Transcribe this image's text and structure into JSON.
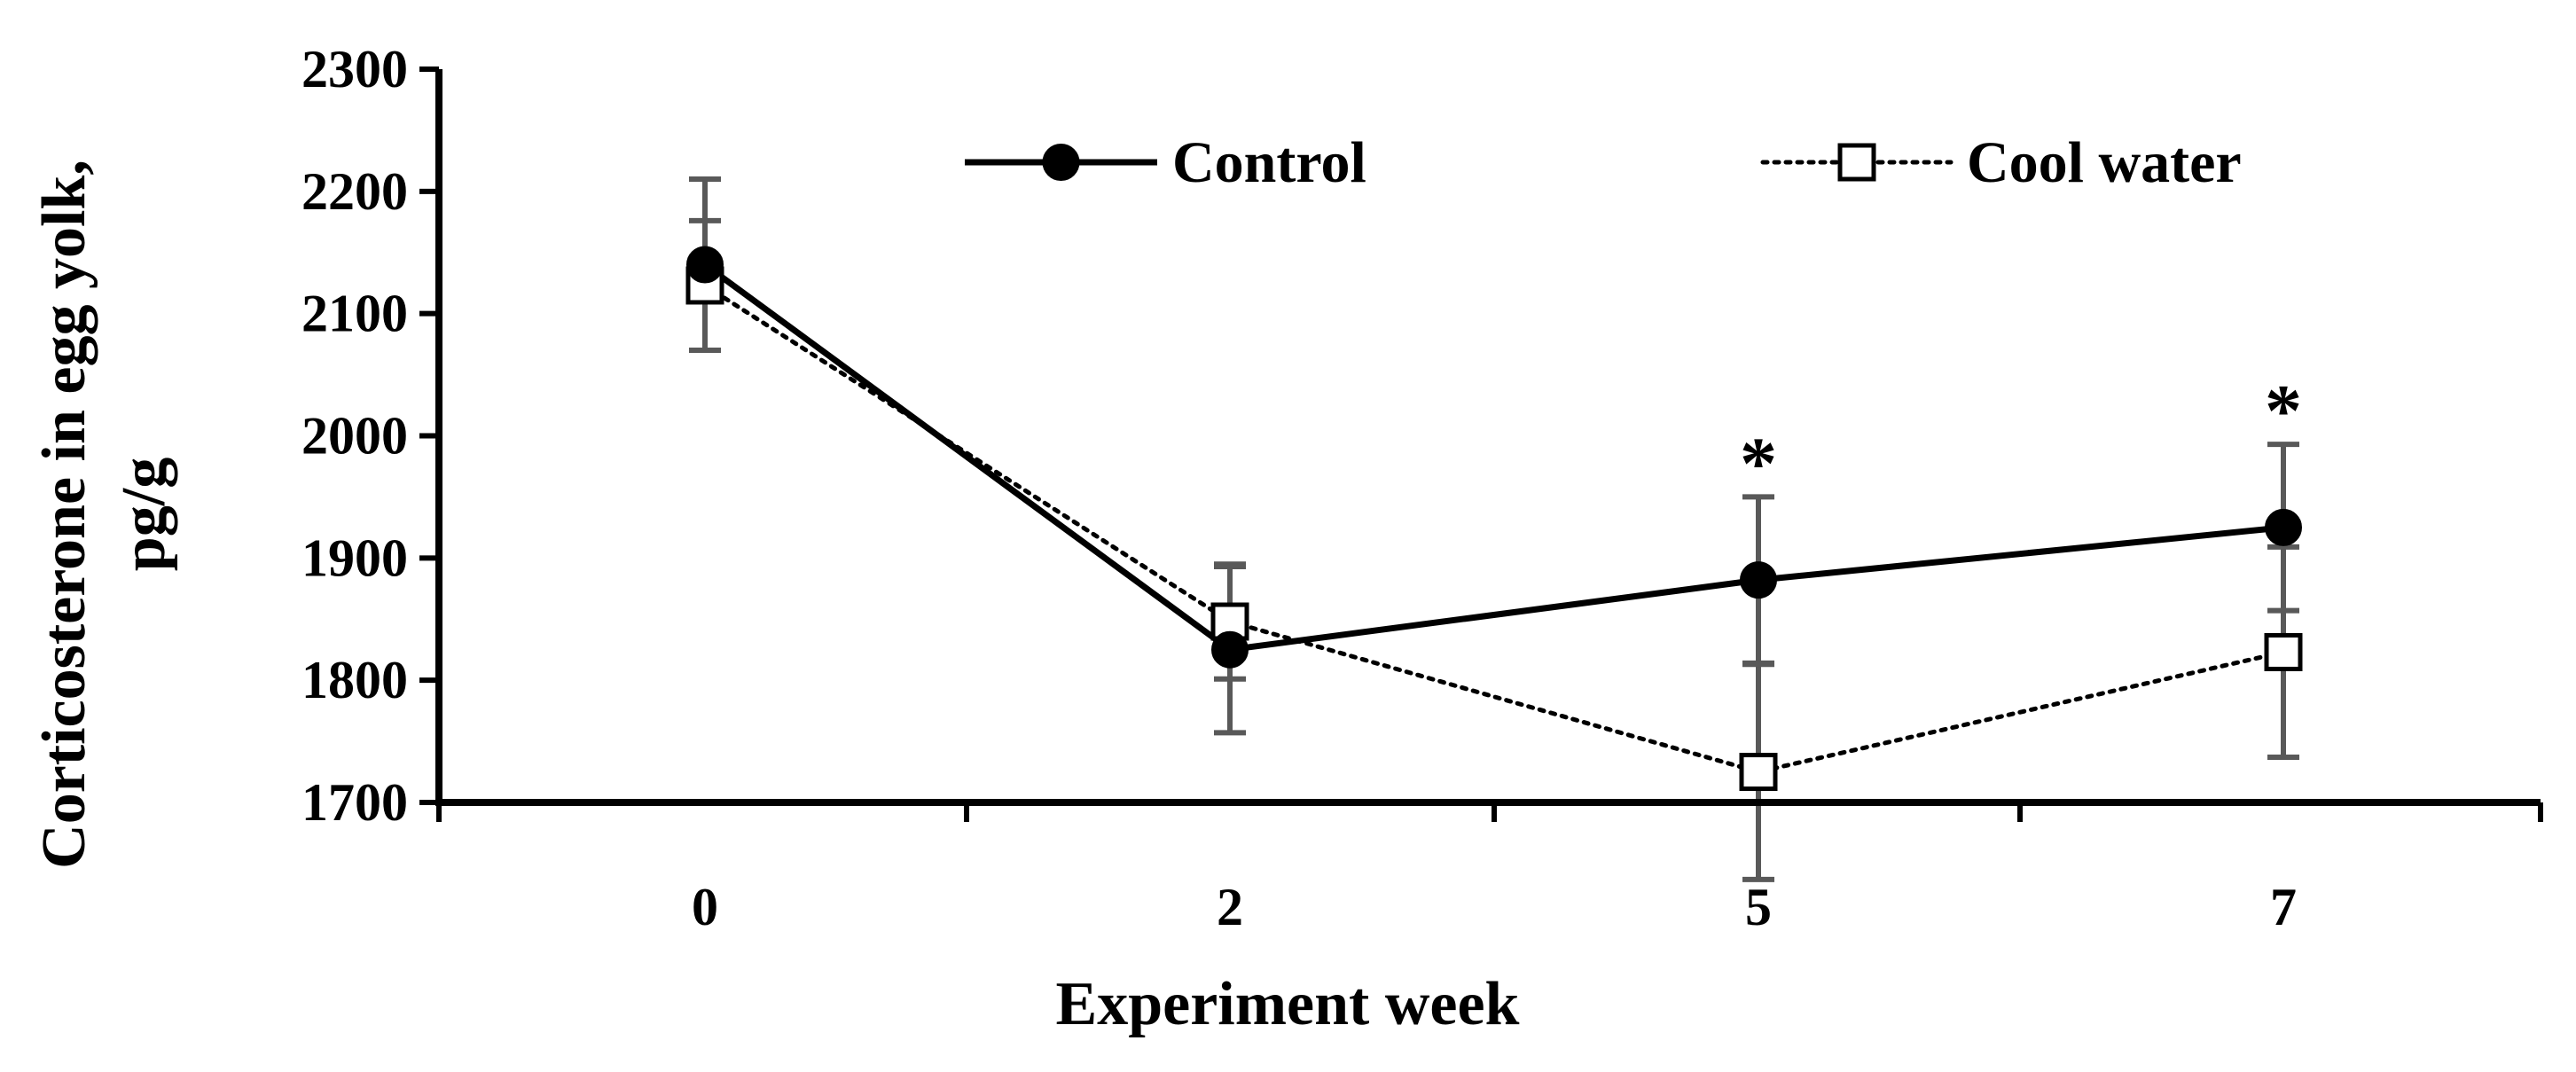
{
  "chart_data": {
    "type": "line",
    "title": "",
    "xlabel": "Experiment week",
    "ylabel_lines": [
      "Corticosterone in egg yolk,",
      "pg/g"
    ],
    "categories": [
      "0",
      "2",
      "5",
      "7"
    ],
    "ylim": [
      1700,
      2300
    ],
    "yticks": [
      1700,
      1800,
      1900,
      2000,
      2100,
      2200,
      2300
    ],
    "grid": false,
    "legend_position": "top",
    "series": [
      {
        "name": "Control",
        "line_style": "solid",
        "marker": "filled-circle",
        "color": "#000000",
        "values": [
          2140,
          1825,
          1882,
          1925
        ],
        "error": [
          70,
          68,
          68,
          68
        ]
      },
      {
        "name": "Cool water",
        "line_style": "dotted",
        "marker": "open-square",
        "color": "#000000",
        "values": [
          2123,
          1848,
          1725,
          1823
        ],
        "error": [
          53,
          47,
          88,
          86
        ]
      }
    ],
    "annotations": [
      {
        "category": "5",
        "text": "*"
      },
      {
        "category": "7",
        "text": "*"
      }
    ],
    "error_bar_color": "#595959"
  }
}
